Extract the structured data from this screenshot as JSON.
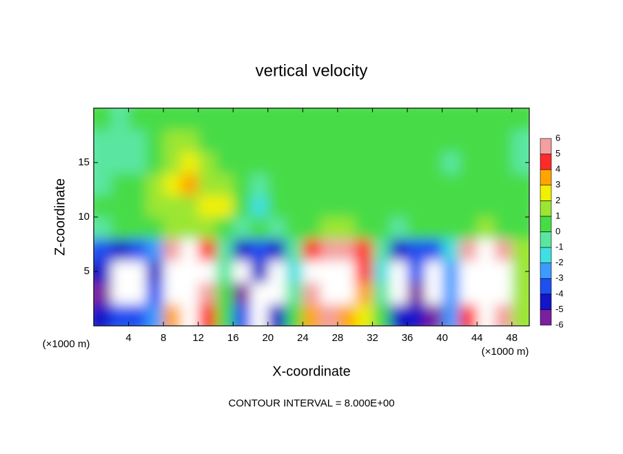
{
  "chart_data": {
    "type": "contour",
    "title": "vertical velocity",
    "x_label": "X-coordinate",
    "y_label": "Z-coordinate",
    "x_unit": "(×1000 m)",
    "y_unit": "(×1000 m)",
    "annotation": "CONTOUR INTERVAL = 8.000E+00",
    "x": [
      1,
      3,
      5,
      7,
      9,
      11,
      13,
      15,
      17,
      19,
      21,
      23,
      25,
      27,
      29,
      31,
      33,
      35,
      37,
      39,
      41,
      43,
      45,
      47,
      49
    ],
    "y": [
      1,
      3,
      5,
      7,
      9,
      11,
      13,
      15,
      17,
      19
    ],
    "values": [
      [
        -5,
        -4,
        -4,
        -3,
        3,
        7,
        4,
        0.5,
        -4,
        -7,
        -5,
        0,
        3,
        5,
        3,
        2,
        0,
        -5,
        -5,
        -6,
        -3,
        4,
        7,
        5,
        1
      ],
      [
        -6,
        -8,
        -8,
        -4,
        7,
        9,
        5,
        0,
        -6,
        -8,
        -7,
        -1,
        5,
        9,
        8,
        3,
        -1,
        -7,
        -6,
        -7,
        -3,
        6,
        9,
        8,
        1
      ],
      [
        -5,
        -8,
        -8,
        -5,
        8,
        9,
        6,
        -1,
        -8,
        -5,
        -8,
        -2,
        6,
        9,
        7,
        4,
        -2,
        -8,
        -4,
        -7,
        -3,
        6,
        9,
        8,
        1
      ],
      [
        -4,
        -5,
        -4,
        -3,
        5,
        6,
        4,
        -1,
        -5,
        -4,
        -5,
        -1,
        4,
        5,
        5,
        4,
        -1,
        -5,
        -4,
        -4,
        -2,
        5,
        6,
        5,
        1
      ],
      [
        -1,
        0,
        0,
        0,
        1,
        1,
        1,
        0,
        -1,
        0,
        -1,
        0,
        0.5,
        1,
        1,
        0.5,
        0,
        -1,
        0,
        0,
        0,
        0.5,
        1,
        0.5,
        0
      ],
      [
        0,
        0.5,
        0.5,
        1,
        1.5,
        1.5,
        2,
        2.5,
        0,
        -1.5,
        0,
        0.5,
        0.5,
        0.5,
        0.5,
        0.5,
        0,
        0.5,
        0.5,
        0.5,
        0.5,
        0.5,
        0.5,
        0.5,
        0
      ],
      [
        -0.5,
        0,
        0.5,
        1,
        2,
        3,
        1.5,
        1,
        0,
        -0.5,
        0,
        0.5,
        0.5,
        0.5,
        0.5,
        0.5,
        0.5,
        0.5,
        0.5,
        0.5,
        0,
        0.5,
        0.5,
        0,
        0
      ],
      [
        -1,
        -1,
        -0.5,
        0.5,
        1.5,
        2.5,
        1,
        0.5,
        0,
        0,
        0,
        0.5,
        0.5,
        0.5,
        0.5,
        0.5,
        0.5,
        0,
        0,
        0,
        -0.5,
        0,
        0,
        0,
        -0.5
      ],
      [
        -0.5,
        -1,
        -0.5,
        0.5,
        1,
        1,
        0.5,
        0.5,
        0,
        0,
        0,
        0.5,
        0.5,
        0.5,
        0.5,
        0.5,
        0,
        0,
        0,
        0,
        0,
        0,
        0,
        0,
        -0.5
      ],
      [
        0,
        -0.5,
        0,
        0.5,
        0.5,
        0.5,
        0.5,
        0.5,
        0.5,
        0.5,
        0.5,
        0.5,
        0.5,
        0.5,
        0.5,
        0.5,
        0.5,
        0.5,
        0.5,
        0.5,
        0.5,
        0.5,
        0.5,
        0,
        0
      ]
    ],
    "xlim": [
      0,
      50
    ],
    "ylim": [
      0,
      20
    ],
    "xticks": [
      4,
      8,
      12,
      16,
      20,
      24,
      28,
      32,
      36,
      40,
      44,
      48
    ],
    "yticks": [
      5,
      10,
      15
    ],
    "colorbar": {
      "levels": [
        -6,
        -5,
        -4,
        -3,
        -2,
        -1,
        0,
        1,
        2,
        3,
        4,
        5,
        6
      ],
      "colors": [
        "#7a1fa0",
        "#1414c8",
        "#1e50f0",
        "#3c9bff",
        "#40e0e0",
        "#5ae6a0",
        "#46dc46",
        "#9be632",
        "#f0f000",
        "#ffa500",
        "#ff2a2a",
        "#f4a0a0"
      ],
      "over_color": "#ffffff"
    }
  }
}
